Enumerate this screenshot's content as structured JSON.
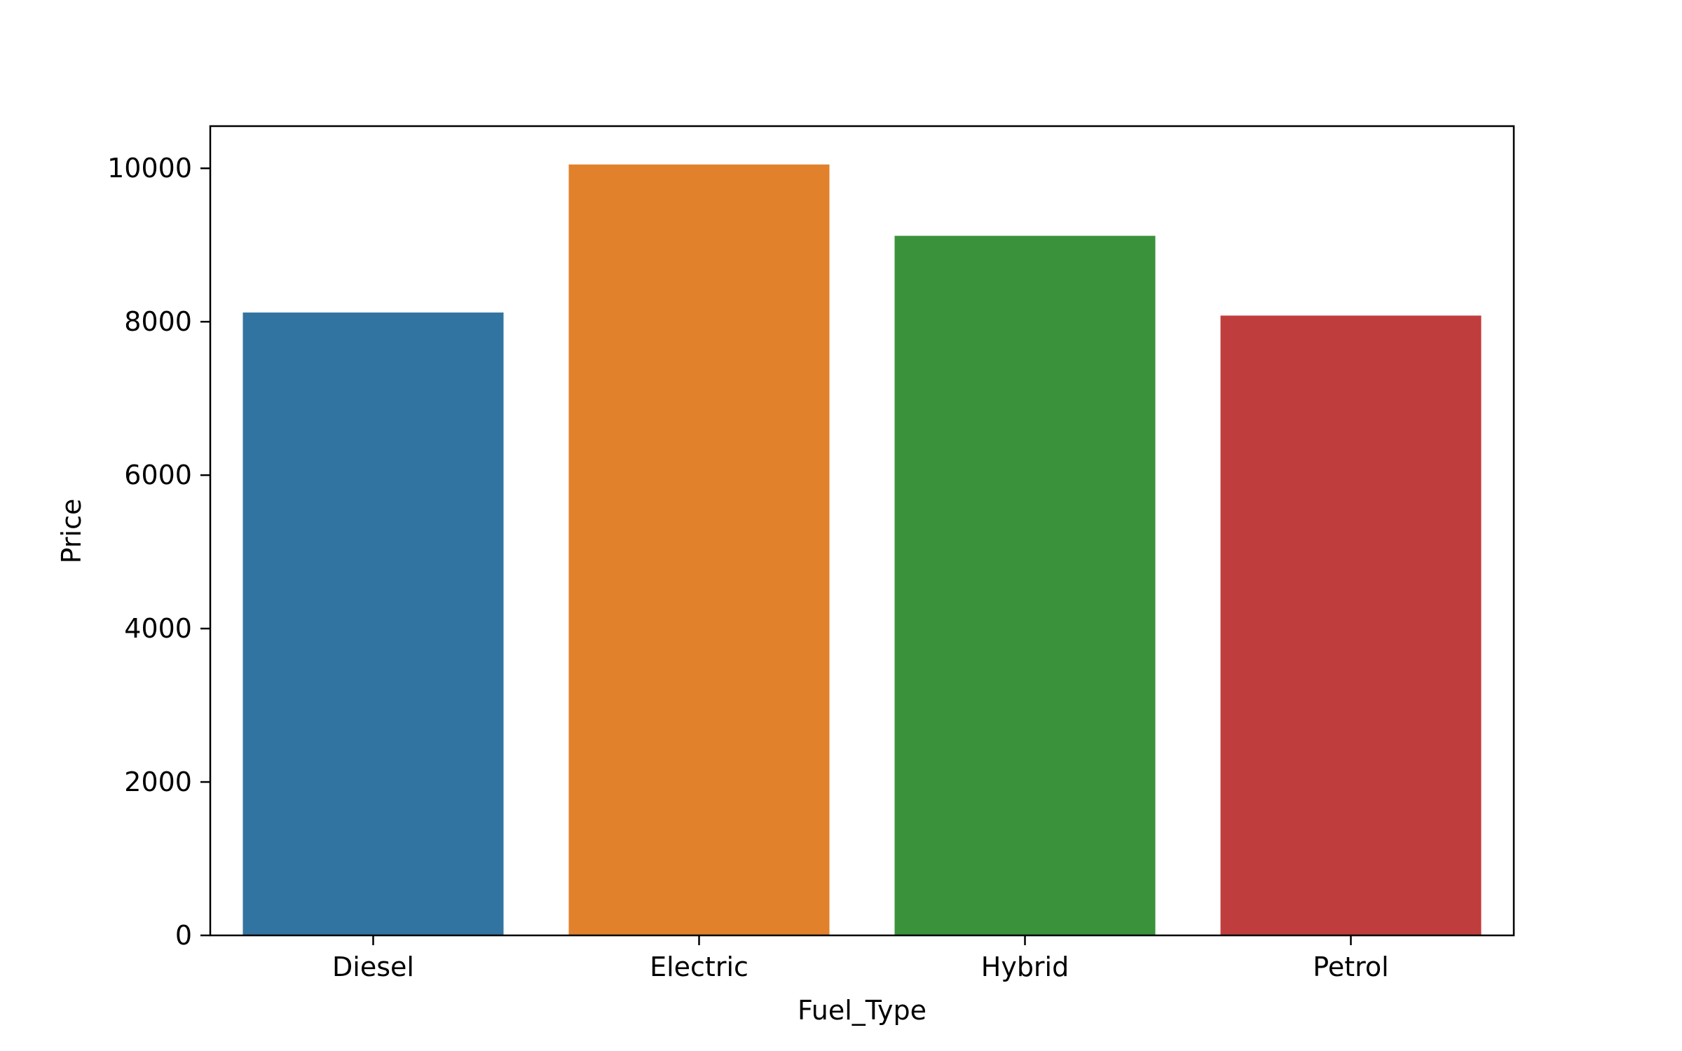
{
  "chart_data": {
    "type": "bar",
    "title": "",
    "xlabel": "Fuel_Type",
    "ylabel": "Price",
    "categories": [
      "Diesel",
      "Electric",
      "Hybrid",
      "Petrol"
    ],
    "values": [
      8120,
      10050,
      9120,
      8080
    ],
    "colors": [
      "#3274a1",
      "#e1812c",
      "#3a923a",
      "#c03d3e"
    ],
    "ylim": [
      0,
      10550
    ],
    "yticks": [
      0,
      2000,
      4000,
      6000,
      8000,
      10000
    ],
    "grid": false,
    "legend": "none"
  }
}
